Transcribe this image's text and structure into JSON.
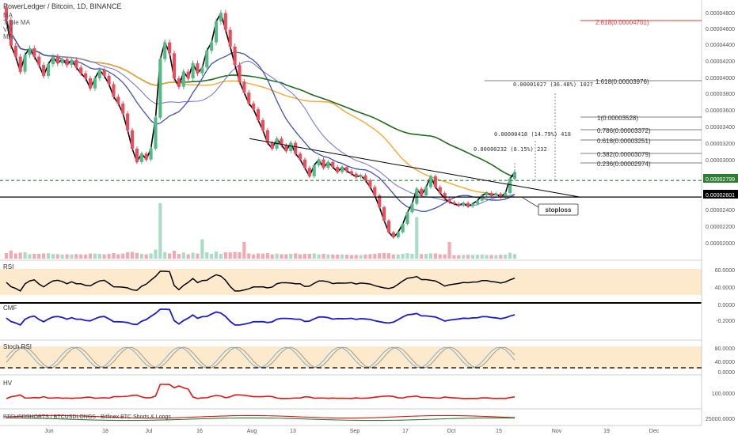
{
  "header": {
    "title": "PowerLedger / Bitcoin, 1D, BINANCE",
    "studies": [
      "MA",
      "Triple MA",
      "Vol",
      "MA"
    ]
  },
  "colors": {
    "up": "#53b987",
    "down": "#eb4d5c",
    "price_line": "#000000",
    "ma_slow": "#1e6b1e",
    "ma_mid": "#f7a733",
    "ma_fast": "#3f51b5",
    "ma_fast2": "#7b7bd6",
    "rsi": "#000000",
    "cmf": "#1a1ad1",
    "stoch_k": "#7fb5d8",
    "stoch_d": "#b09f85",
    "hv": "#e31414",
    "band": "#fde9cc",
    "fib": "#444444",
    "fib_top": "#e53935",
    "dash_green": "#2e7d32"
  },
  "price_axis": {
    "ticks": [
      "0.00004800",
      "0.00004600",
      "0.00004400",
      "0.00004200",
      "0.00004000",
      "0.00003800",
      "0.00003600",
      "0.00003400",
      "0.00003200",
      "0.00003000",
      "0.00002800",
      "0.00002600",
      "0.00002400",
      "0.00002200",
      "0.00002000"
    ],
    "last_price": "0.00002799",
    "line_price": "0.00002601"
  },
  "time_axis": [
    "Jun",
    "18",
    "Jul",
    "16",
    "Aug",
    "13",
    "Sep",
    "17",
    "Oct",
    "15",
    "Nov",
    "19",
    "Dec"
  ],
  "fib_levels": [
    {
      "label": "2.618(0.00004701)",
      "value": 4.701e-05,
      "top": true
    },
    {
      "label": "1.618(0.00003976)",
      "value": 3.976e-05
    },
    {
      "label": "1(0.00003528)",
      "value": 3.528e-05
    },
    {
      "label": "0.786(0.00003372)",
      "value": 3.372e-05
    },
    {
      "label": "0.618(0.00003251)",
      "value": 3.251e-05
    },
    {
      "label": "0.382(0.00003079)",
      "value": 3.079e-05
    },
    {
      "label": "0.236(0.00002974)",
      "value": 2.974e-05
    }
  ],
  "measures": [
    {
      "label": "0.00001027 (36.48%) 1027"
    },
    {
      "label": "0.00000418 (14.79%) 418"
    },
    {
      "label": "0.00000232 (8.15%) 232"
    }
  ],
  "annotations": {
    "stoploss": "stoploss"
  },
  "panes": {
    "rsi": {
      "label": "RSI",
      "ticks": [
        "60.0000",
        "40.0000"
      ]
    },
    "cmf": {
      "label": "CMF",
      "ticks": [
        "0.0000",
        "-0.2000"
      ]
    },
    "stoch": {
      "label": "Stoch RSI",
      "ticks": [
        "80.0000",
        "40.0000",
        "0.0000"
      ]
    },
    "hv": {
      "label": "HV",
      "ticks": [
        "100.0000"
      ]
    },
    "shorts": {
      "label": "BTCUSDSHORTS / BTCUSDLONGS · Bitfinex BTC Shorts & Longs",
      "ticks": [
        "25000.0000"
      ]
    }
  },
  "chart_data": {
    "type": "candlestick",
    "title": "PowerLedger / Bitcoin, 1D, BINANCE",
    "ylim": [
      1.95e-05,
      4.9e-05
    ],
    "candles": [
      [
        4.87e-05,
        4.72e-05
      ],
      [
        4.72e-05,
        4.41e-05
      ],
      [
        4.41e-05,
        4.28e-05
      ],
      [
        4.28e-05,
        4.1e-05
      ],
      [
        4.1e-05,
        4.3e-05
      ],
      [
        4.3e-05,
        4.38e-05
      ],
      [
        4.38e-05,
        4.28e-05
      ],
      [
        4.28e-05,
        4.18e-05
      ],
      [
        4.18e-05,
        4.05e-05
      ],
      [
        4.05e-05,
        4.19e-05
      ],
      [
        4.19e-05,
        4.28e-05
      ],
      [
        4.28e-05,
        4.2e-05
      ],
      [
        4.2e-05,
        4.25e-05
      ],
      [
        4.25e-05,
        4.18e-05
      ],
      [
        4.18e-05,
        4.24e-05
      ],
      [
        4.24e-05,
        4.15e-05
      ],
      [
        4.15e-05,
        4.08e-05
      ],
      [
        4.08e-05,
        4.02e-05
      ],
      [
        4.02e-05,
        3.9e-05
      ],
      [
        3.9e-05,
        4.02e-05
      ],
      [
        4.02e-05,
        4.12e-05
      ],
      [
        4.12e-05,
        4.05e-05
      ],
      [
        4.05e-05,
        3.95e-05
      ],
      [
        3.95e-05,
        3.8e-05
      ],
      [
        3.8e-05,
        3.72e-05
      ],
      [
        3.72e-05,
        3.6e-05
      ],
      [
        3.6e-05,
        3.4e-05
      ],
      [
        3.4e-05,
        3.18e-05
      ],
      [
        3.18e-05,
        3.02e-05
      ],
      [
        3.02e-05,
        3.12e-05
      ],
      [
        3.12e-05,
        3.05e-05
      ],
      [
        3.05e-05,
        3.18e-05
      ],
      [
        3.18e-05,
        3.55e-05
      ],
      [
        3.55e-05,
        4.25e-05
      ],
      [
        4.25e-05,
        4.45e-05
      ],
      [
        4.45e-05,
        4.32e-05
      ],
      [
        4.32e-05,
        4.02e-05
      ],
      [
        4.02e-05,
        3.92e-05
      ],
      [
        3.92e-05,
        4.1e-05
      ],
      [
        4.1e-05,
        4.02e-05
      ],
      [
        4.02e-05,
        4.2e-05
      ],
      [
        4.2e-05,
        4.08e-05
      ],
      [
        4.08e-05,
        4.15e-05
      ],
      [
        4.15e-05,
        4.35e-05
      ],
      [
        4.35e-05,
        4.45e-05
      ],
      [
        4.45e-05,
        4.7e-05
      ],
      [
        4.7e-05,
        4.8e-05
      ],
      [
        4.8e-05,
        4.6e-05
      ],
      [
        4.6e-05,
        4.4e-05
      ],
      [
        4.4e-05,
        4.18e-05
      ],
      [
        4.18e-05,
        3.98e-05
      ],
      [
        3.98e-05,
        3.85e-05
      ],
      [
        3.85e-05,
        3.72e-05
      ],
      [
        3.72e-05,
        3.65e-05
      ],
      [
        3.65e-05,
        3.52e-05
      ],
      [
        3.52e-05,
        3.4e-05
      ],
      [
        3.4e-05,
        3.25e-05
      ],
      [
        3.25e-05,
        3.18e-05
      ],
      [
        3.18e-05,
        3.3e-05
      ],
      [
        3.3e-05,
        3.22e-05
      ],
      [
        3.22e-05,
        3.15e-05
      ],
      [
        3.15e-05,
        3.25e-05
      ],
      [
        3.25e-05,
        3.12e-05
      ],
      [
        3.12e-05,
        3.05e-05
      ],
      [
        3.05e-05,
        2.95e-05
      ],
      [
        2.95e-05,
        2.85e-05
      ],
      [
        2.85e-05,
        2.98e-05
      ],
      [
        2.98e-05,
        3.05e-05
      ],
      [
        3.05e-05,
        2.95e-05
      ],
      [
        2.95e-05,
        3.02e-05
      ],
      [
        3.02e-05,
        2.96e-05
      ],
      [
        2.96e-05,
        2.9e-05
      ],
      [
        2.9e-05,
        2.96e-05
      ],
      [
        2.96e-05,
        2.91e-05
      ],
      [
        2.91e-05,
        2.88e-05
      ],
      [
        2.88e-05,
        2.84e-05
      ],
      [
        2.84e-05,
        2.86e-05
      ],
      [
        2.86e-05,
        2.8e-05
      ],
      [
        2.8e-05,
        2.72e-05
      ],
      [
        2.72e-05,
        2.62e-05
      ],
      [
        2.62e-05,
        2.48e-05
      ],
      [
        2.48e-05,
        2.32e-05
      ],
      [
        2.32e-05,
        2.18e-05
      ],
      [
        2.18e-05,
        2.12e-05
      ],
      [
        2.12e-05,
        2.18e-05
      ],
      [
        2.18e-05,
        2.28e-05
      ],
      [
        2.28e-05,
        2.42e-05
      ],
      [
        2.42e-05,
        2.52e-05
      ],
      [
        2.52e-05,
        2.7e-05
      ],
      [
        2.7e-05,
        2.62e-05
      ],
      [
        2.62e-05,
        2.72e-05
      ],
      [
        2.72e-05,
        2.85e-05
      ],
      [
        2.85e-05,
        2.72e-05
      ],
      [
        2.72e-05,
        2.65e-05
      ],
      [
        2.65e-05,
        2.58e-05
      ],
      [
        2.58e-05,
        2.54e-05
      ],
      [
        2.54e-05,
        2.52e-05
      ],
      [
        2.52e-05,
        2.5e-05
      ],
      [
        2.5e-05,
        2.53e-05
      ],
      [
        2.53e-05,
        2.49e-05
      ],
      [
        2.49e-05,
        2.52e-05
      ],
      [
        2.52e-05,
        2.56e-05
      ],
      [
        2.56e-05,
        2.62e-05
      ],
      [
        2.62e-05,
        2.65e-05
      ],
      [
        2.65e-05,
        2.62e-05
      ],
      [
        2.62e-05,
        2.64e-05
      ],
      [
        2.64e-05,
        2.6e-05
      ],
      [
        2.6e-05,
        2.65e-05
      ],
      [
        2.65e-05,
        2.82e-05
      ],
      [
        2.82e-05,
        2.9e-05
      ]
    ],
    "volume_spikes": [
      [
        33,
        1.0
      ],
      [
        88,
        0.75
      ],
      [
        42,
        0.35
      ],
      [
        51,
        0.3
      ],
      [
        95,
        0.3
      ]
    ]
  }
}
